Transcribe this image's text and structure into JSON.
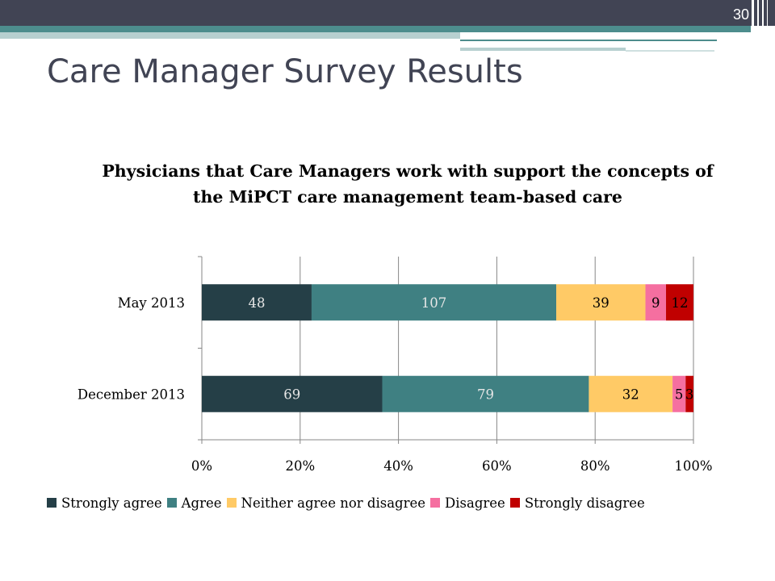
{
  "slide": {
    "title": "Care Manager Survey Results",
    "number": "30",
    "colors": {
      "dark": "#414454",
      "accent": "#4d8d8d",
      "light": "#b7d0d0"
    }
  },
  "chart_data": {
    "type": "bar",
    "orientation": "horizontal",
    "stacked": "percent",
    "title": "Physicians that Care Managers work with support the concepts of the MiPCT care management team-based care",
    "categories": [
      "May 2013",
      "December 2013"
    ],
    "series": [
      {
        "name": "Strongly agree",
        "color": "#253f47",
        "values": [
          48,
          69
        ]
      },
      {
        "name": "Agree",
        "color": "#3f8082",
        "values": [
          107,
          79
        ]
      },
      {
        "name": "Neither agree nor disagree",
        "color": "#ffca66",
        "values": [
          39,
          32
        ]
      },
      {
        "name": "Disagree",
        "color": "#f56fa0",
        "values": [
          9,
          5
        ]
      },
      {
        "name": "Strongly disagree",
        "color": "#c00000",
        "values": [
          12,
          3
        ]
      }
    ],
    "x_ticks": [
      "0%",
      "20%",
      "40%",
      "60%",
      "80%",
      "100%"
    ],
    "xlim": [
      0,
      100
    ],
    "grid": true,
    "legend_position": "bottom"
  }
}
